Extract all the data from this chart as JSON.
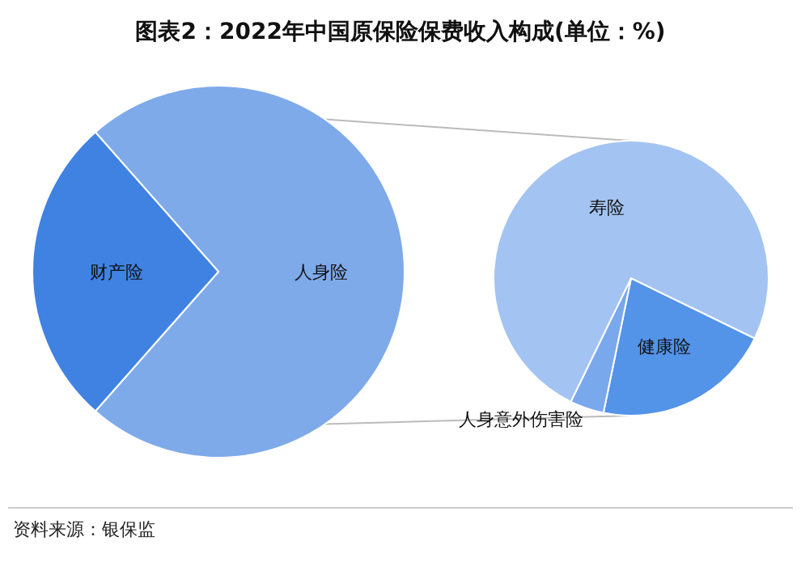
{
  "chart_data": [
    {
      "type": "pie",
      "title": "图表2：2022年中国原保险保费收入构成(单位：%)",
      "categories": [
        "人身险",
        "财产险"
      ],
      "values": [
        73,
        27
      ],
      "colors": [
        "#7eaaea",
        "#3f82e2"
      ],
      "annotations": [
        "资料来源：银保监"
      ]
    },
    {
      "type": "pie",
      "categories": [
        "健康险",
        "人身意外伤害险",
        "寿险"
      ],
      "values": [
        21,
        4,
        75
      ],
      "colors": [
        "#5393e8",
        "#7aa8ec",
        "#a3c3f2"
      ]
    }
  ]
}
